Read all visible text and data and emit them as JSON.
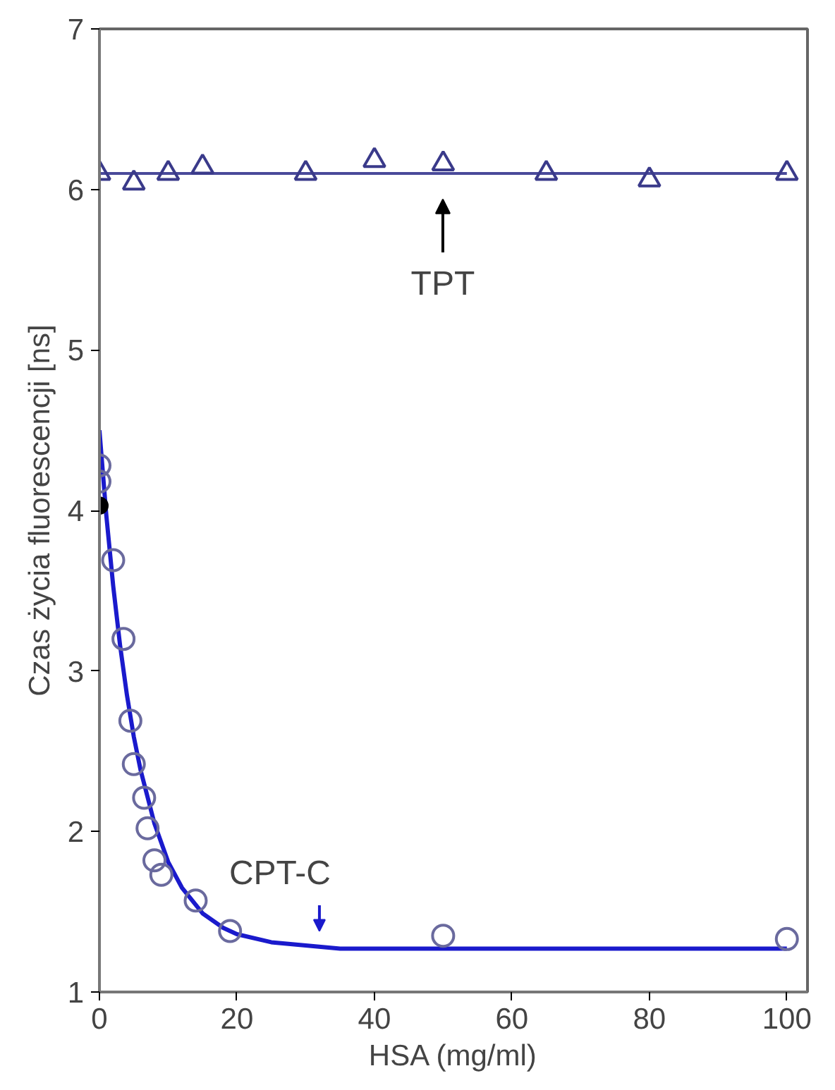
{
  "chart_data": {
    "type": "scatter",
    "xlabel": "HSA (mg/ml)",
    "ylabel": "Czas życia fluorescencji [ns]",
    "xlim": [
      0,
      103
    ],
    "ylim": [
      1,
      7
    ],
    "xticks": [
      0,
      20,
      40,
      60,
      80,
      100
    ],
    "yticks": [
      1,
      2,
      3,
      4,
      5,
      6,
      7
    ],
    "grid": false,
    "series": [
      {
        "type": "line",
        "color": "#4a4a9a",
        "x": [
          0,
          100
        ],
        "values": [
          6.1,
          6.1
        ],
        "marker": "none"
      },
      {
        "color": "#3a3a8a",
        "marker": "triangle",
        "x": [
          0,
          5,
          10,
          15,
          30,
          40,
          50,
          65,
          80,
          100
        ],
        "values": [
          6.1,
          6.04,
          6.1,
          6.14,
          6.1,
          6.18,
          6.16,
          6.1,
          6.06,
          6.1
        ]
      },
      {
        "type": "line",
        "color": "#1a1acc",
        "marker": "none",
        "x": [
          0,
          1,
          2,
          3,
          4,
          5,
          6,
          8,
          10,
          12,
          15,
          18,
          20,
          25,
          30,
          35,
          100
        ],
        "values": [
          4.5,
          3.97,
          3.53,
          3.16,
          2.85,
          2.59,
          2.38,
          2.05,
          1.81,
          1.65,
          1.49,
          1.4,
          1.36,
          1.31,
          1.29,
          1.27,
          1.27
        ]
      },
      {
        "color": "#6a6a9e",
        "marker": "circle",
        "x": [
          0,
          0,
          2,
          3.5,
          4.5,
          5,
          6.5,
          7,
          8,
          9,
          14,
          19,
          50,
          100
        ],
        "values": [
          4.28,
          4.18,
          3.69,
          3.2,
          2.69,
          2.42,
          2.21,
          2.02,
          1.82,
          1.73,
          1.57,
          1.38,
          1.35,
          1.33
        ]
      },
      {
        "color": "#000000",
        "marker": "circle",
        "x": [
          0
        ],
        "values": [
          4.03
        ]
      }
    ],
    "annotations": [
      "TPT",
      {
        "text": "CPT-C",
        "x": 32,
        "y": 1.27
      }
    ]
  }
}
